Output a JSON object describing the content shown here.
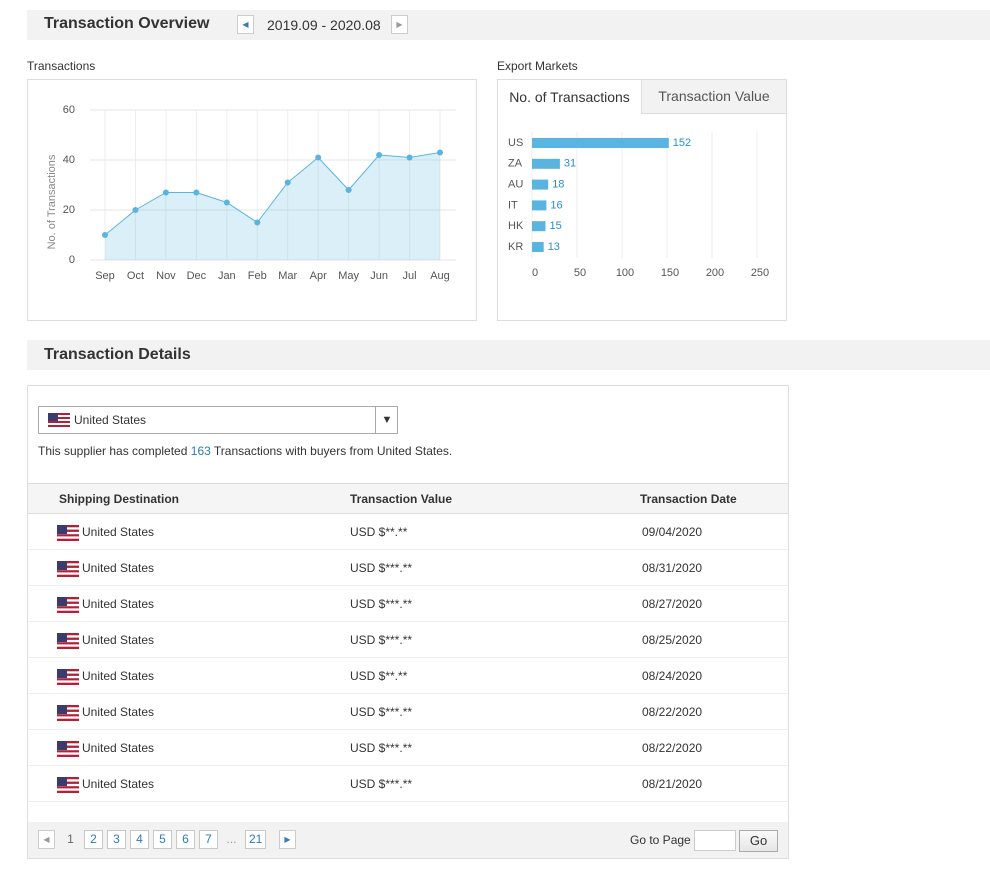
{
  "overview": {
    "title": "Transaction Overview",
    "period": "2019.09 - 2020.08"
  },
  "chart_data": [
    {
      "type": "line",
      "title": "Transactions",
      "y_label": "No. of Transactions",
      "categories": [
        "Sep",
        "Oct",
        "Nov",
        "Dec",
        "Jan",
        "Feb",
        "Mar",
        "Apr",
        "May",
        "Jun",
        "Jul",
        "Aug"
      ],
      "values": [
        10,
        20,
        27,
        27,
        23,
        15,
        31,
        41,
        28,
        42,
        41,
        43
      ],
      "color": "#5ab4e0",
      "ylim": [
        0,
        60
      ],
      "yticks": [
        0,
        20,
        40,
        60
      ],
      "grid": true
    },
    {
      "type": "hbar",
      "title": "Export Markets",
      "tabs": [
        "No. of Transactions",
        "Transaction Value"
      ],
      "categories": [
        "US",
        "ZA",
        "AU",
        "IT",
        "HK",
        "KR"
      ],
      "values": [
        152,
        31,
        18,
        16,
        15,
        13
      ],
      "color": "#5ab4e0",
      "xlim": [
        0,
        250
      ],
      "xticks": [
        0,
        50,
        100,
        150,
        200,
        250
      ],
      "grid": true
    }
  ],
  "details": {
    "title": "Transaction Details",
    "country": "United States",
    "summary": {
      "prefix": "This supplier has completed",
      "count": 163,
      "suffix": "Transactions with buyers from United States."
    },
    "columns": [
      "Shipping Destination",
      "Transaction Value",
      "Transaction Date"
    ],
    "rows": [
      [
        "United States",
        "USD $**.**",
        "09/04/2020"
      ],
      [
        "United States",
        "USD $***.**",
        "08/31/2020"
      ],
      [
        "United States",
        "USD $***.**",
        "08/27/2020"
      ],
      [
        "United States",
        "USD $***.**",
        "08/25/2020"
      ],
      [
        "United States",
        "USD $**.**",
        "08/24/2020"
      ],
      [
        "United States",
        "USD $***.**",
        "08/22/2020"
      ],
      [
        "United States",
        "USD $***.**",
        "08/22/2020"
      ],
      [
        "United States",
        "USD $***.**",
        "08/21/2020"
      ]
    ],
    "pages": [
      "1",
      "2",
      "3",
      "4",
      "5",
      "6",
      "7",
      "...",
      "21"
    ],
    "goto_label": "Go to Page",
    "go_button": "Go"
  }
}
